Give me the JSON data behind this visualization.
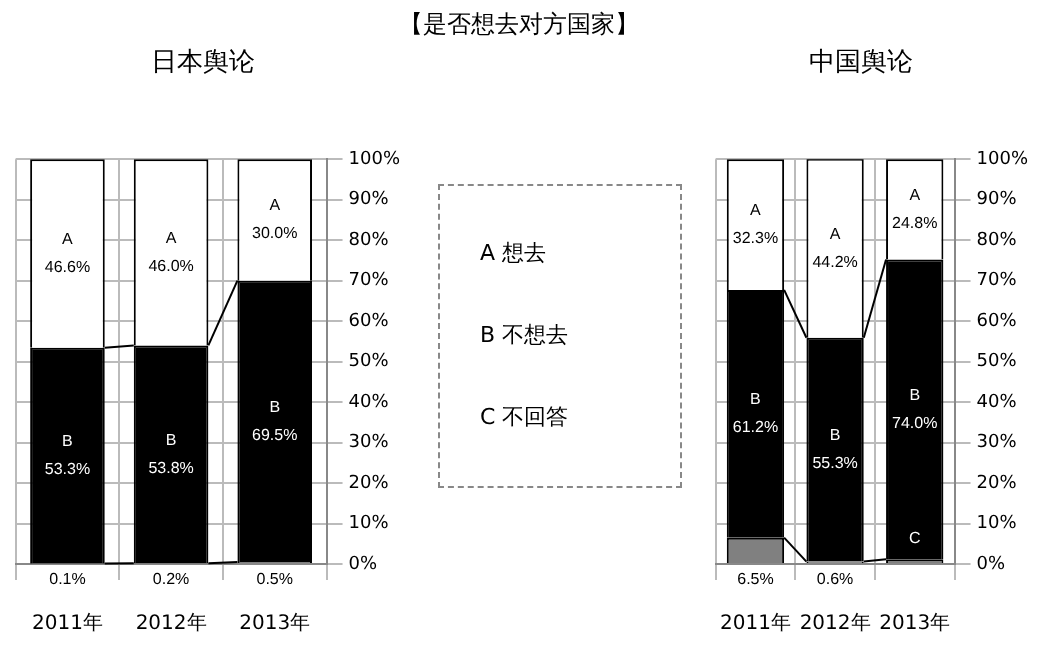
{
  "chart_data": [
    {
      "type": "other",
      "title": "【是否想去对方国家】",
      "annotations": [
        "A 想去",
        "B 不想去",
        "C 不回答"
      ]
    },
    {
      "type": "bar",
      "title": "日本舆论",
      "categories": [
        "2011年",
        "2012年",
        "2013年"
      ],
      "stacked": true,
      "grid": true,
      "ylim": [
        0,
        100
      ],
      "yticks": [
        {
          "value": 0,
          "label": "0%"
        },
        {
          "value": 10,
          "label": "10%"
        },
        {
          "value": 20,
          "label": "20%"
        },
        {
          "value": 30,
          "label": "30%"
        },
        {
          "value": 40,
          "label": "40%"
        },
        {
          "value": 50,
          "label": "50%"
        },
        {
          "value": 60,
          "label": "60%"
        },
        {
          "value": 70,
          "label": "70%"
        },
        {
          "value": 80,
          "label": "80%"
        },
        {
          "value": 90,
          "label": "90%"
        },
        {
          "value": 100,
          "label": "100%"
        }
      ],
      "series": [
        {
          "color": "#808080",
          "values": [
            0.1,
            0.2,
            0.5
          ],
          "value_labels": [
            "0.1%",
            "0.2%",
            "0.5%"
          ]
        },
        {
          "name": "B",
          "color": "#000000",
          "values": [
            53.3,
            53.8,
            69.5
          ],
          "value_labels": [
            "53.3%",
            "53.8%",
            "69.5%"
          ]
        },
        {
          "name": "A",
          "color": "#ffffff",
          "values": [
            46.6,
            46.0,
            30.0
          ],
          "value_labels": [
            "46.6%",
            "46.0%",
            "30.0%"
          ]
        }
      ]
    },
    {
      "type": "bar",
      "title": "中国舆论",
      "categories": [
        "2011年",
        "2012年",
        "2013年"
      ],
      "stacked": true,
      "grid": true,
      "ylim": [
        0,
        100
      ],
      "yticks": [
        {
          "value": 0,
          "label": "0%"
        },
        {
          "value": 10,
          "label": "10%"
        },
        {
          "value": 20,
          "label": "20%"
        },
        {
          "value": 30,
          "label": "30%"
        },
        {
          "value": 40,
          "label": "40%"
        },
        {
          "value": 50,
          "label": "50%"
        },
        {
          "value": 60,
          "label": "60%"
        },
        {
          "value": 70,
          "label": "70%"
        },
        {
          "value": 80,
          "label": "80%"
        },
        {
          "value": 90,
          "label": "90%"
        },
        {
          "value": 100,
          "label": "100%"
        }
      ],
      "series": [
        {
          "name": "C",
          "color": "#808080",
          "values": [
            6.5,
            0.6,
            1.2
          ],
          "value_labels": [
            "6.5%",
            "0.6%",
            null
          ]
        },
        {
          "name": "B",
          "color": "#000000",
          "values": [
            61.2,
            55.3,
            74.0
          ],
          "value_labels": [
            "61.2%",
            "55.3%",
            "74.0%"
          ]
        },
        {
          "name": "A",
          "color": "#ffffff",
          "values": [
            32.3,
            44.2,
            24.8
          ],
          "value_labels": [
            "32.3%",
            "44.2%",
            "24.8%"
          ]
        }
      ]
    }
  ]
}
